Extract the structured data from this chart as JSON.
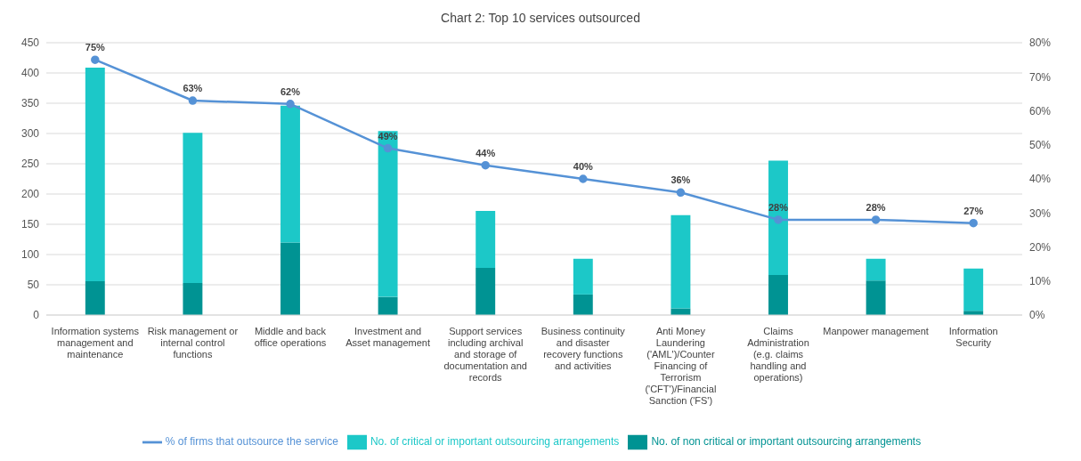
{
  "chart_data": {
    "type": "bar",
    "title": "Chart 2: Top 10 services outsourced",
    "categories": [
      "Information systems management and maintenance",
      "Risk management or internal control functions",
      "Middle and back office operations",
      "Investment and Asset management",
      "Support services including archival and storage of documentation and records",
      "Business continuity and disaster recovery functions and activities",
      "Anti Money Laundering ('AML')/Counter Financing of Terrorism ('CFT')/Financial Sanction ('FS')",
      "Claims Administration (e.g. claims handling and operations)",
      "Manpower management",
      "Information Security"
    ],
    "series": [
      {
        "name": "No. of non critical or important outsourcing arrangements",
        "color": "#009393",
        "values": [
          56,
          53,
          120,
          30,
          78,
          34,
          11,
          66,
          57,
          7
        ]
      },
      {
        "name": "No. of critical or important outsourcing arrangements",
        "color": "#1cc8c8",
        "values": [
          353,
          248,
          226,
          274,
          94,
          59,
          154,
          189,
          36,
          70
        ]
      },
      {
        "name": "% of firms that outsource the service",
        "type": "line",
        "axis": "y2",
        "color": "#5592d6",
        "values": [
          75,
          63,
          62,
          49,
          44,
          40,
          36,
          28,
          28,
          27
        ],
        "value_labels": [
          "75%",
          "63%",
          "62%",
          "49%",
          "44%",
          "40%",
          "36%",
          "28%",
          "28%",
          "27%"
        ]
      }
    ],
    "stacked": true,
    "ylim": [
      0,
      450
    ],
    "yticks": [
      0,
      50,
      100,
      150,
      200,
      250,
      300,
      350,
      400,
      450
    ],
    "y2lim": [
      0,
      80
    ],
    "y2ticks": [
      {
        "value": 0,
        "label": "0%"
      },
      {
        "value": 10,
        "label": "10%"
      },
      {
        "value": 20,
        "label": "20%"
      },
      {
        "value": 30,
        "label": "30%"
      },
      {
        "value": 40,
        "label": "40%"
      },
      {
        "value": 50,
        "label": "50%"
      },
      {
        "value": 60,
        "label": "60%"
      },
      {
        "value": 70,
        "label": "70%"
      },
      {
        "value": 80,
        "label": "80%"
      }
    ],
    "grid": "y",
    "legend": "bottom",
    "marker": "circle"
  }
}
